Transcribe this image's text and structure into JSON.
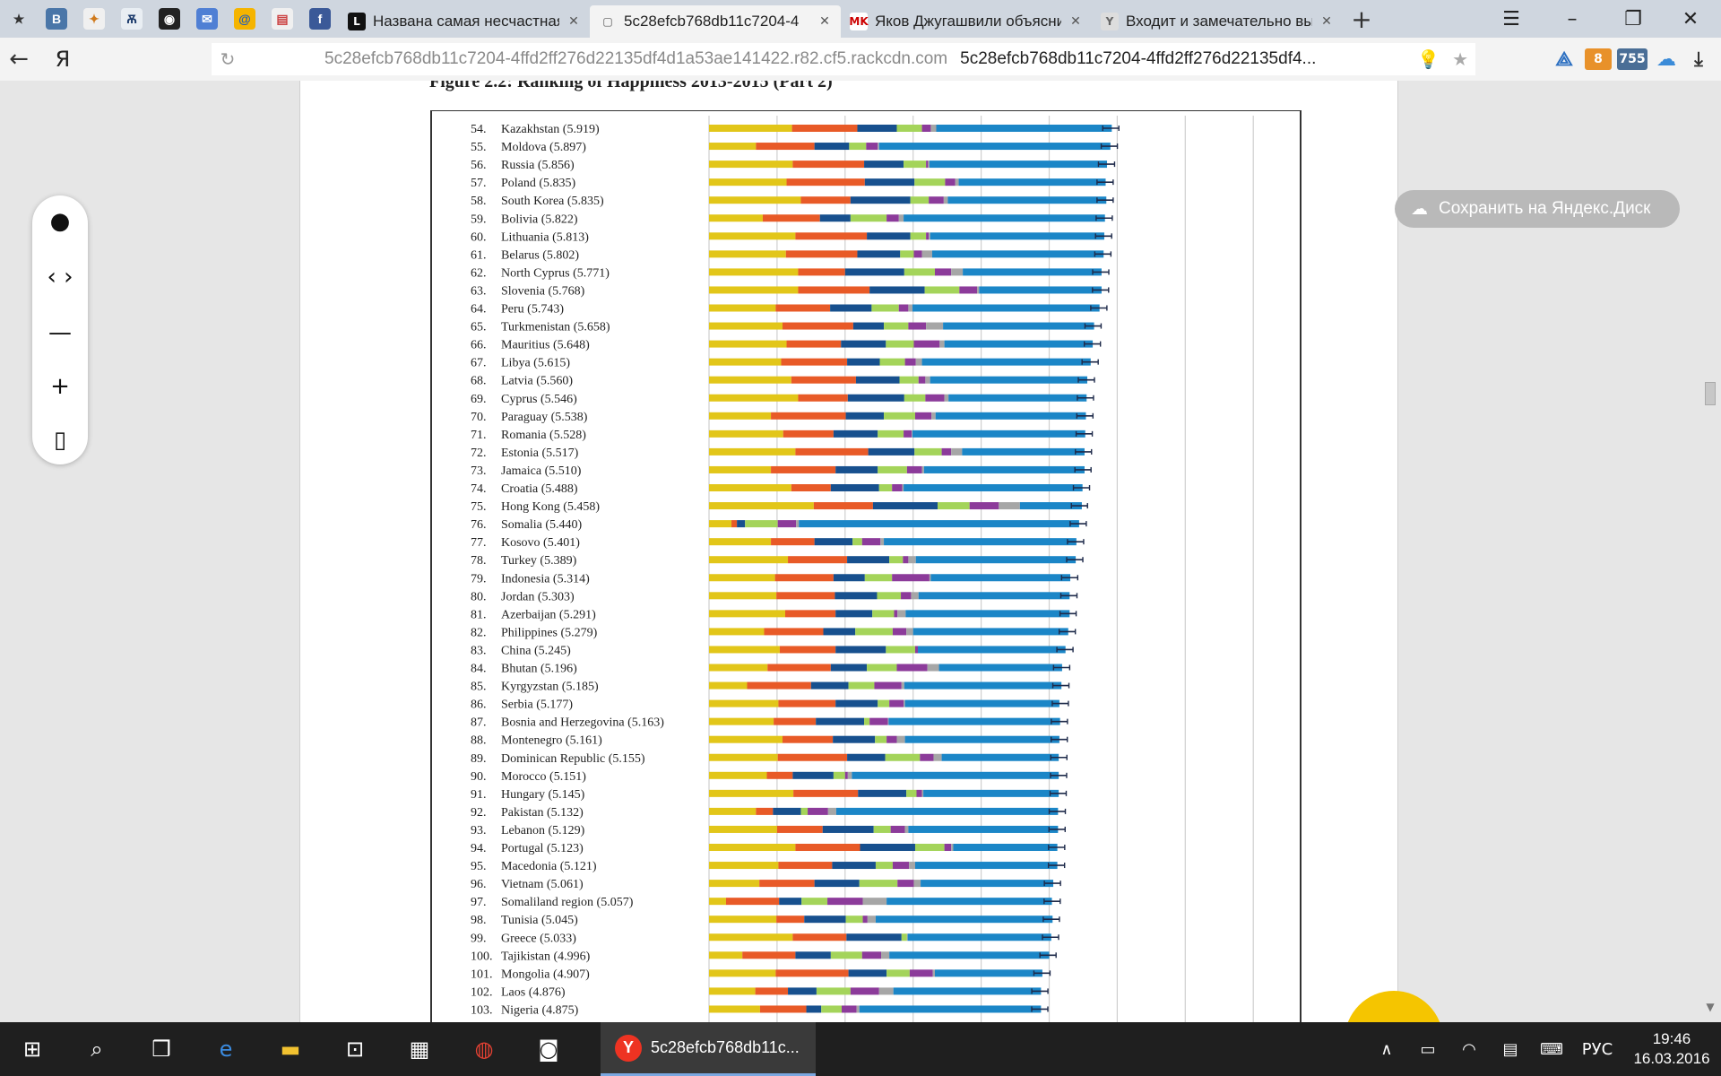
{
  "tabs": {
    "pinned": [
      {
        "name": "bookmarks-icon",
        "glyph": "★",
        "bg": "#cfd6df",
        "fg": "#333"
      },
      {
        "name": "vk-icon",
        "glyph": "В",
        "bg": "#4a76a8",
        "fg": "#fff"
      },
      {
        "name": "cyprus-icon",
        "glyph": "✦",
        "bg": "#f0f0f0",
        "fg": "#d07a1c"
      },
      {
        "name": "vital-icon",
        "glyph": "Ѫ",
        "bg": "#e9eef3",
        "fg": "#1b3a6b"
      },
      {
        "name": "vinyl-icon",
        "glyph": "◉",
        "bg": "#222",
        "fg": "#fff"
      },
      {
        "name": "mail-icon",
        "glyph": "✉",
        "bg": "#4f7fd4",
        "fg": "#fff"
      },
      {
        "name": "mailru-icon",
        "glyph": "@",
        "bg": "#f5b400",
        "fg": "#1e5bbf"
      },
      {
        "name": "news-icon",
        "glyph": "▤",
        "bg": "#f0f0f0",
        "fg": "#c44"
      },
      {
        "name": "facebook-icon",
        "glyph": "f",
        "bg": "#3b5998",
        "fg": "#fff"
      }
    ],
    "open": [
      {
        "favicon": "L",
        "fav_bg": "#111",
        "fav_fg": "#fff",
        "title": "Названа самая несчастная ст",
        "active": false
      },
      {
        "favicon": "▢",
        "fav_bg": "transparent",
        "fav_fg": "#555",
        "title": "5c28efcb768db11c7204-4",
        "active": true
      },
      {
        "favicon": "MK",
        "fav_bg": "#fff",
        "fav_fg": "#c00",
        "title": "Яков Джугашвили объяснил",
        "active": false
      },
      {
        "favicon": "Y",
        "fav_bg": "#ddd",
        "fav_fg": "#666",
        "title": "Входит и замечательно выхс",
        "active": false
      }
    ]
  },
  "address": {
    "brand": "Я",
    "url": "5c28efcb768db11c7204-4ffd2ff276d22135df4d1a53ae141422.r82.cf5.rackcdn.com",
    "page_title": "5c28efcb768db11c7204-4ffd2ff276d22135df4...",
    "ext_badge_1": "8",
    "ext_badge_2": "755"
  },
  "document": {
    "figure_title": "Figure 2.2: Ranking of Happiness 2013-2015 (Part 2)"
  },
  "save_button": "Сохранить на Яндекс.Диск",
  "taskbar": {
    "active_window": "5c28efcb768db11c...",
    "language": "РУС",
    "time": "19:46",
    "date": "16.03.2016"
  },
  "colors": {
    "gdp": "#e2c619",
    "social": "#e85a27",
    "health": "#17508e",
    "freedom": "#a4d45a",
    "generosity": "#8c3b9a",
    "corruption": "#a6a6a6",
    "dystopia": "#1b86c7",
    "error": "#1e2a4a"
  },
  "chart_data": {
    "type": "bar",
    "stacked": true,
    "orientation": "horizontal",
    "title": "Figure 2.2: Ranking of Happiness 2013-2015 (Part 2)",
    "xlim": [
      0,
      8
    ],
    "grid": true,
    "series_order": [
      "gdp",
      "social",
      "health",
      "freedom",
      "generosity",
      "corruption",
      "dystopia"
    ],
    "countries": [
      {
        "rank": "54.",
        "name": "Kazakhstan",
        "score": 5.919,
        "seg": [
          1.22,
          0.96,
          0.58,
          0.37,
          0.13,
          0.08,
          2.58
        ]
      },
      {
        "rank": "55.",
        "name": "Moldova",
        "score": 5.897,
        "seg": [
          0.69,
          0.86,
          0.51,
          0.25,
          0.17,
          0.02,
          3.4
        ]
      },
      {
        "rank": "56.",
        "name": "Russia",
        "score": 5.856,
        "seg": [
          1.23,
          1.05,
          0.58,
          0.33,
          0.03,
          0.02,
          2.61
        ]
      },
      {
        "rank": "57.",
        "name": "Poland",
        "score": 5.835,
        "seg": [
          1.14,
          1.15,
          0.73,
          0.45,
          0.15,
          0.05,
          2.16
        ]
      },
      {
        "rank": "58.",
        "name": "South Korea",
        "score": 5.835,
        "seg": [
          1.35,
          0.73,
          0.88,
          0.27,
          0.22,
          0.06,
          2.33
        ]
      },
      {
        "rank": "59.",
        "name": "Bolivia",
        "score": 5.822,
        "seg": [
          0.79,
          0.84,
          0.45,
          0.53,
          0.18,
          0.07,
          2.96
        ]
      },
      {
        "rank": "60.",
        "name": "Lithuania",
        "score": 5.813,
        "seg": [
          1.27,
          1.05,
          0.64,
          0.23,
          0.04,
          0.02,
          2.56
        ]
      },
      {
        "rank": "61.",
        "name": "Belarus",
        "score": 5.802,
        "seg": [
          1.13,
          1.05,
          0.63,
          0.2,
          0.12,
          0.15,
          2.52
        ]
      },
      {
        "rank": "62.",
        "name": "North Cyprus",
        "score": 5.771,
        "seg": [
          1.31,
          0.69,
          0.87,
          0.45,
          0.24,
          0.17,
          2.04
        ]
      },
      {
        "rank": "63.",
        "name": "Slovenia",
        "score": 5.768,
        "seg": [
          1.31,
          1.05,
          0.81,
          0.51,
          0.26,
          0.03,
          1.8
        ]
      },
      {
        "rank": "64.",
        "name": "Peru",
        "score": 5.743,
        "seg": [
          0.98,
          0.8,
          0.61,
          0.4,
          0.14,
          0.06,
          2.75
        ]
      },
      {
        "rank": "65.",
        "name": "Turkmenistan",
        "score": 5.658,
        "seg": [
          1.08,
          1.04,
          0.45,
          0.36,
          0.26,
          0.25,
          2.22
        ]
      },
      {
        "rank": "66.",
        "name": "Mauritius",
        "score": 5.648,
        "seg": [
          1.14,
          0.8,
          0.66,
          0.41,
          0.38,
          0.07,
          2.18
        ]
      },
      {
        "rank": "67.",
        "name": "Libya",
        "score": 5.615,
        "seg": [
          1.06,
          0.97,
          0.48,
          0.37,
          0.16,
          0.09,
          2.48
        ]
      },
      {
        "rank": "68.",
        "name": "Latvia",
        "score": 5.56,
        "seg": [
          1.21,
          0.95,
          0.64,
          0.28,
          0.1,
          0.07,
          2.31
        ]
      },
      {
        "rank": "69.",
        "name": "Cyprus",
        "score": 5.546,
        "seg": [
          1.31,
          0.73,
          0.83,
          0.31,
          0.28,
          0.06,
          2.03
        ]
      },
      {
        "rank": "70.",
        "name": "Paraguay",
        "score": 5.538,
        "seg": [
          0.91,
          1.1,
          0.56,
          0.46,
          0.24,
          0.06,
          2.21
        ]
      },
      {
        "rank": "71.",
        "name": "Romania",
        "score": 5.528,
        "seg": [
          1.09,
          0.74,
          0.65,
          0.38,
          0.12,
          0.01,
          2.54
        ]
      },
      {
        "rank": "72.",
        "name": "Estonia",
        "score": 5.517,
        "seg": [
          1.27,
          1.07,
          0.68,
          0.4,
          0.14,
          0.16,
          1.8
        ]
      },
      {
        "rank": "73.",
        "name": "Jamaica",
        "score": 5.51,
        "seg": [
          0.91,
          0.95,
          0.62,
          0.43,
          0.22,
          0.03,
          2.36
        ]
      },
      {
        "rank": "74.",
        "name": "Croatia",
        "score": 5.488,
        "seg": [
          1.21,
          0.58,
          0.71,
          0.19,
          0.15,
          0.02,
          2.63
        ]
      },
      {
        "rank": "75.",
        "name": "Hong Kong",
        "score": 5.458,
        "seg": [
          1.54,
          0.87,
          0.95,
          0.47,
          0.43,
          0.31,
          0.91
        ]
      },
      {
        "rank": "76.",
        "name": "Somalia",
        "score": 5.44,
        "seg": [
          0.33,
          0.08,
          0.12,
          0.48,
          0.27,
          0.04,
          4.12
        ]
      },
      {
        "rank": "77.",
        "name": "Kosovo",
        "score": 5.401,
        "seg": [
          0.91,
          0.64,
          0.56,
          0.14,
          0.27,
          0.05,
          2.83
        ]
      },
      {
        "rank": "78.",
        "name": "Turkey",
        "score": 5.389,
        "seg": [
          1.16,
          0.87,
          0.62,
          0.2,
          0.08,
          0.11,
          2.35
        ]
      },
      {
        "rank": "79.",
        "name": "Indonesia",
        "score": 5.314,
        "seg": [
          0.97,
          0.86,
          0.46,
          0.4,
          0.55,
          0.02,
          2.05
        ]
      },
      {
        "rank": "80.",
        "name": "Jordan",
        "score": 5.303,
        "seg": [
          0.99,
          0.86,
          0.62,
          0.35,
          0.15,
          0.11,
          2.22
        ]
      },
      {
        "rank": "81.",
        "name": "Azerbaijan",
        "score": 5.291,
        "seg": [
          1.12,
          0.74,
          0.54,
          0.32,
          0.05,
          0.12,
          2.41
        ]
      },
      {
        "rank": "82.",
        "name": "Philippines",
        "score": 5.279,
        "seg": [
          0.81,
          0.87,
          0.47,
          0.55,
          0.2,
          0.1,
          2.28
        ]
      },
      {
        "rank": "83.",
        "name": "China",
        "score": 5.245,
        "seg": [
          1.04,
          0.82,
          0.74,
          0.43,
          0.04,
          0.0,
          2.17
        ]
      },
      {
        "rank": "84.",
        "name": "Bhutan",
        "score": 5.196,
        "seg": [
          0.86,
          0.93,
          0.53,
          0.44,
          0.45,
          0.17,
          1.81
        ]
      },
      {
        "rank": "85.",
        "name": "Kyrgyzstan",
        "score": 5.185,
        "seg": [
          0.56,
          0.94,
          0.55,
          0.38,
          0.4,
          0.04,
          2.31
        ]
      },
      {
        "rank": "86.",
        "name": "Serbia",
        "score": 5.177,
        "seg": [
          1.02,
          0.84,
          0.62,
          0.17,
          0.21,
          0.02,
          2.27
        ]
      },
      {
        "rank": "87.",
        "name": "Bosnia and Herzegovina",
        "score": 5.163,
        "seg": [
          0.95,
          0.62,
          0.71,
          0.08,
          0.27,
          0.01,
          2.52
        ]
      },
      {
        "rank": "88.",
        "name": "Montenegro",
        "score": 5.161,
        "seg": [
          1.08,
          0.74,
          0.62,
          0.17,
          0.15,
          0.12,
          2.27
        ]
      },
      {
        "rank": "89.",
        "name": "Dominican Republic",
        "score": 5.155,
        "seg": [
          1.01,
          1.02,
          0.56,
          0.51,
          0.2,
          0.12,
          1.72
        ]
      },
      {
        "rank": "90.",
        "name": "Morocco",
        "score": 5.151,
        "seg": [
          0.85,
          0.38,
          0.6,
          0.17,
          0.04,
          0.06,
          3.04
        ]
      },
      {
        "rank": "91.",
        "name": "Hungary",
        "score": 5.145,
        "seg": [
          1.24,
          0.95,
          0.71,
          0.15,
          0.08,
          0.02,
          1.99
        ]
      },
      {
        "rank": "92.",
        "name": "Pakistan",
        "score": 5.132,
        "seg": [
          0.69,
          0.25,
          0.41,
          0.1,
          0.3,
          0.12,
          3.26
        ]
      },
      {
        "rank": "93.",
        "name": "Lebanon",
        "score": 5.129,
        "seg": [
          1.0,
          0.67,
          0.75,
          0.25,
          0.21,
          0.05,
          2.2
        ]
      },
      {
        "rank": "94.",
        "name": "Portugal",
        "score": 5.123,
        "seg": [
          1.27,
          0.95,
          0.81,
          0.43,
          0.1,
          0.03,
          1.53
        ]
      },
      {
        "rank": "95.",
        "name": "Macedonia",
        "score": 5.121,
        "seg": [
          1.02,
          0.79,
          0.64,
          0.25,
          0.24,
          0.09,
          2.09
        ]
      },
      {
        "rank": "96.",
        "name": "Vietnam",
        "score": 5.061,
        "seg": [
          0.74,
          0.81,
          0.66,
          0.56,
          0.24,
          0.1,
          1.95
        ]
      },
      {
        "rank": "97.",
        "name": "Somaliland region",
        "score": 5.057,
        "seg": [
          0.25,
          0.78,
          0.33,
          0.38,
          0.52,
          0.35,
          2.43
        ]
      },
      {
        "rank": "98.",
        "name": "Tunisia",
        "score": 5.045,
        "seg": [
          0.99,
          0.41,
          0.61,
          0.25,
          0.07,
          0.12,
          2.6
        ]
      },
      {
        "rank": "99.",
        "name": "Greece",
        "score": 5.033,
        "seg": [
          1.23,
          0.79,
          0.81,
          0.08,
          0.0,
          0.01,
          2.11
        ]
      },
      {
        "rank": "100.",
        "name": "Tajikistan",
        "score": 4.996,
        "seg": [
          0.49,
          0.78,
          0.52,
          0.46,
          0.28,
          0.12,
          2.35
        ]
      },
      {
        "rank": "101.",
        "name": "Mongolia",
        "score": 4.907,
        "seg": [
          0.98,
          1.07,
          0.56,
          0.34,
          0.34,
          0.03,
          1.58
        ]
      },
      {
        "rank": "102.",
        "name": "Laos",
        "score": 4.876,
        "seg": [
          0.68,
          0.48,
          0.42,
          0.5,
          0.42,
          0.21,
          2.17
        ]
      },
      {
        "rank": "103.",
        "name": "Nigeria",
        "score": 4.875,
        "seg": [
          0.75,
          0.68,
          0.22,
          0.3,
          0.22,
          0.04,
          2.67
        ]
      }
    ]
  }
}
